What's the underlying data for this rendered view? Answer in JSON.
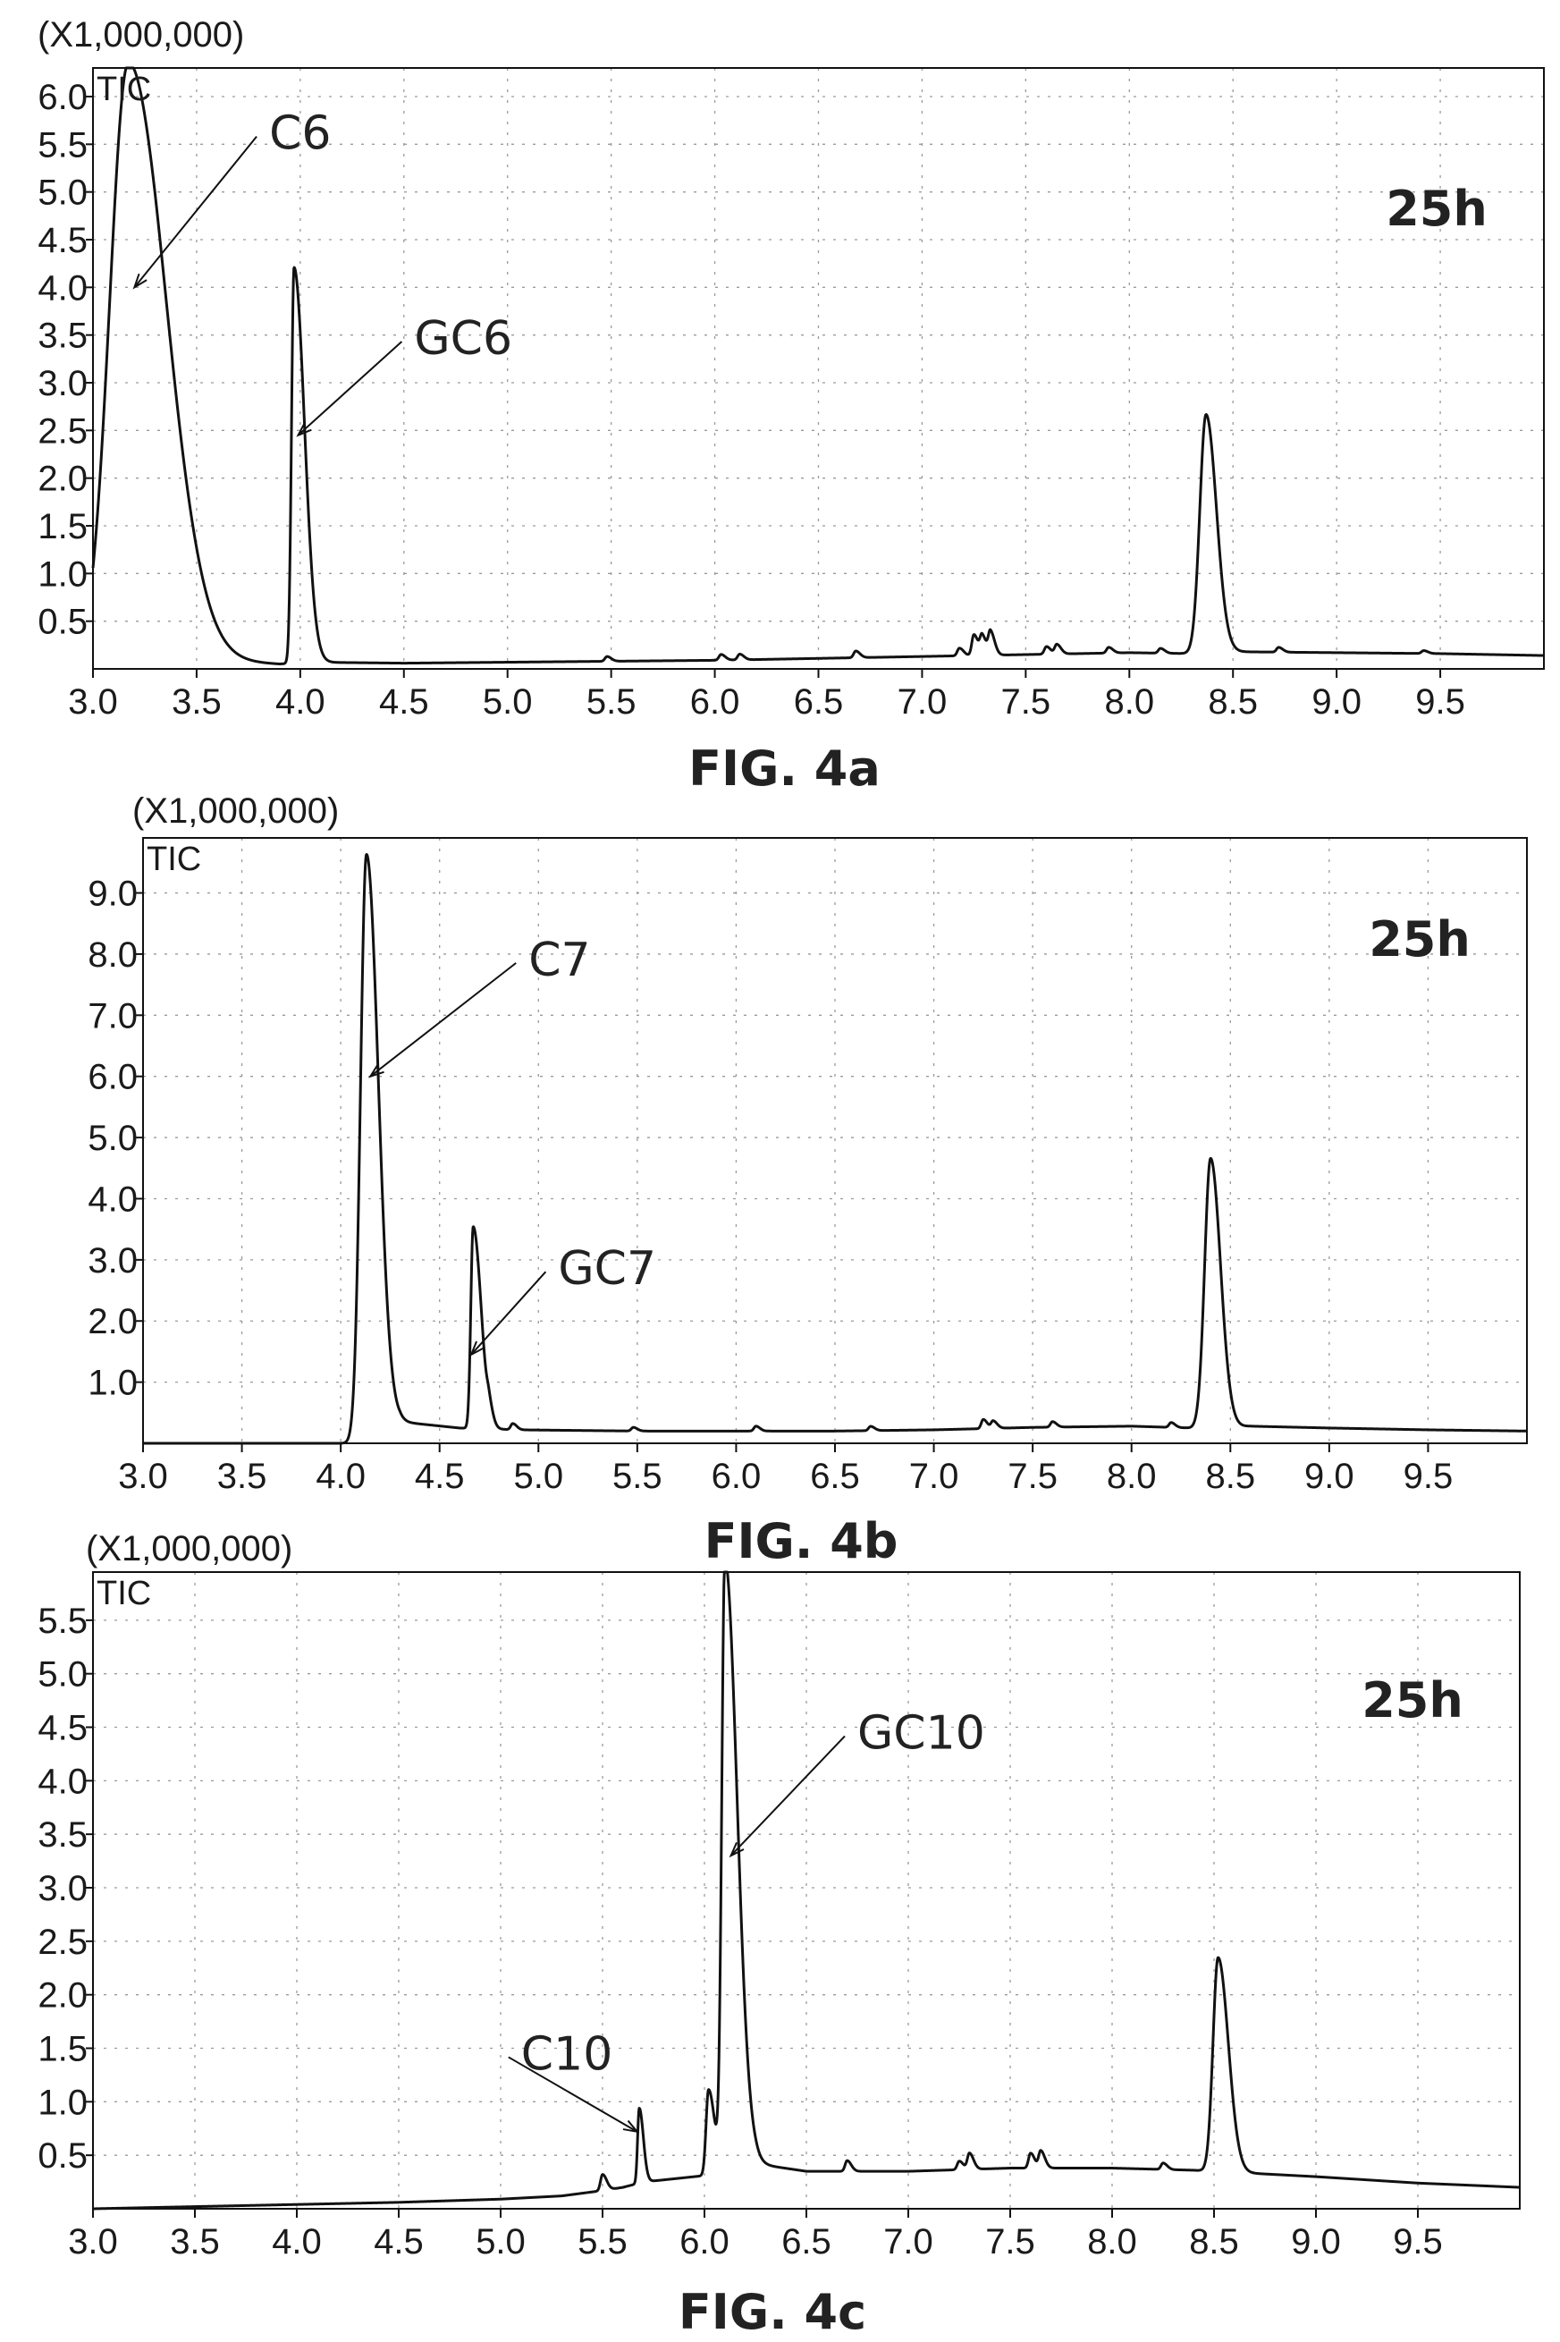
{
  "chart_data": [
    {
      "type": "line",
      "scale_label": "(X1,000,000)",
      "trace_label": "TIC",
      "time_label": "25h",
      "caption": "FIG. 4a",
      "xlim": [
        3.0,
        10.0
      ],
      "ylim": [
        0,
        6.3
      ],
      "xticks": [
        "3.0",
        "3.5",
        "4.0",
        "4.5",
        "5.0",
        "5.5",
        "6.0",
        "6.5",
        "7.0",
        "7.5",
        "8.0",
        "8.5",
        "9.0",
        "9.5"
      ],
      "yticks": [
        "0.5",
        "1.0",
        "1.5",
        "2.0",
        "2.5",
        "3.0",
        "3.5",
        "4.0",
        "4.5",
        "5.0",
        "5.5",
        "6.0"
      ],
      "baseline": [
        [
          3.0,
          0.0
        ],
        [
          3.08,
          0.0
        ],
        [
          3.3,
          0.12
        ],
        [
          3.6,
          0.08
        ],
        [
          3.9,
          0.05
        ],
        [
          4.05,
          0.07
        ],
        [
          4.5,
          0.06
        ],
        [
          5.0,
          0.07
        ],
        [
          5.5,
          0.08
        ],
        [
          6.0,
          0.09
        ],
        [
          6.5,
          0.11
        ],
        [
          7.0,
          0.13
        ],
        [
          7.5,
          0.15
        ],
        [
          8.0,
          0.17
        ],
        [
          8.3,
          0.16
        ],
        [
          8.5,
          0.18
        ],
        [
          9.0,
          0.17
        ],
        [
          9.5,
          0.16
        ],
        [
          10.0,
          0.14
        ]
      ],
      "peaks": [
        {
          "rt": 3.17,
          "height": 6.3,
          "left": 0.09,
          "tail": 0.18
        },
        {
          "rt": 3.97,
          "height": 4.15,
          "left": 0.012,
          "tail": 0.05
        },
        {
          "rt": 8.37,
          "height": 2.5,
          "left": 0.03,
          "tail": 0.05
        },
        {
          "rt": 5.48,
          "height": 0.05,
          "left": 0.01,
          "tail": 0.02
        },
        {
          "rt": 6.03,
          "height": 0.06,
          "left": 0.01,
          "tail": 0.02
        },
        {
          "rt": 6.12,
          "height": 0.06,
          "left": 0.01,
          "tail": 0.02
        },
        {
          "rt": 6.68,
          "height": 0.07,
          "left": 0.01,
          "tail": 0.02
        },
        {
          "rt": 7.18,
          "height": 0.08,
          "left": 0.01,
          "tail": 0.02
        },
        {
          "rt": 7.25,
          "height": 0.22,
          "left": 0.01,
          "tail": 0.02
        },
        {
          "rt": 7.29,
          "height": 0.2,
          "left": 0.01,
          "tail": 0.02
        },
        {
          "rt": 7.33,
          "height": 0.24,
          "left": 0.01,
          "tail": 0.02
        },
        {
          "rt": 7.6,
          "height": 0.08,
          "left": 0.01,
          "tail": 0.02
        },
        {
          "rt": 7.65,
          "height": 0.1,
          "left": 0.01,
          "tail": 0.02
        },
        {
          "rt": 7.9,
          "height": 0.06,
          "left": 0.01,
          "tail": 0.02
        },
        {
          "rt": 8.15,
          "height": 0.05,
          "left": 0.01,
          "tail": 0.02
        },
        {
          "rt": 8.72,
          "height": 0.05,
          "left": 0.01,
          "tail": 0.02
        },
        {
          "rt": 9.42,
          "height": 0.03,
          "left": 0.01,
          "tail": 0.02
        }
      ],
      "annotations": [
        {
          "text": "C6",
          "label_x": 3.85,
          "label_y": 5.45,
          "tip_x": 3.2,
          "tip_y": 4.0
        },
        {
          "text": "GC6",
          "label_x": 4.55,
          "label_y": 3.3,
          "tip_x": 3.99,
          "tip_y": 2.45
        }
      ]
    },
    {
      "type": "line",
      "scale_label": "(X1,000,000)",
      "trace_label": "TIC",
      "time_label": "25h",
      "caption": "FIG. 4b",
      "xlim": [
        3.0,
        10.0
      ],
      "ylim": [
        0,
        9.9
      ],
      "xticks": [
        "3.0",
        "3.5",
        "4.0",
        "4.5",
        "5.0",
        "5.5",
        "6.0",
        "6.5",
        "7.0",
        "7.5",
        "8.0",
        "8.5",
        "9.0",
        "9.5"
      ],
      "yticks": [
        "1.0",
        "2.0",
        "3.0",
        "4.0",
        "5.0",
        "6.0",
        "7.0",
        "8.0",
        "9.0"
      ],
      "baseline": [
        [
          3.0,
          0.0
        ],
        [
          4.08,
          0.0
        ],
        [
          4.3,
          0.35
        ],
        [
          4.6,
          0.25
        ],
        [
          4.9,
          0.22
        ],
        [
          5.5,
          0.2
        ],
        [
          6.0,
          0.2
        ],
        [
          6.5,
          0.2
        ],
        [
          7.0,
          0.22
        ],
        [
          7.5,
          0.26
        ],
        [
          8.0,
          0.28
        ],
        [
          8.3,
          0.25
        ],
        [
          8.6,
          0.28
        ],
        [
          9.0,
          0.25
        ],
        [
          9.5,
          0.22
        ],
        [
          10.0,
          0.2
        ]
      ],
      "peaks": [
        {
          "rt": 4.13,
          "height": 9.55,
          "left": 0.03,
          "tail": 0.06
        },
        {
          "rt": 4.67,
          "height": 3.3,
          "left": 0.012,
          "tail": 0.04
        },
        {
          "rt": 8.4,
          "height": 4.4,
          "left": 0.03,
          "tail": 0.05
        },
        {
          "rt": 4.75,
          "height": 0.2,
          "left": 0.01,
          "tail": 0.02
        },
        {
          "rt": 4.87,
          "height": 0.1,
          "left": 0.01,
          "tail": 0.02
        },
        {
          "rt": 5.48,
          "height": 0.06,
          "left": 0.01,
          "tail": 0.02
        },
        {
          "rt": 6.1,
          "height": 0.08,
          "left": 0.01,
          "tail": 0.02
        },
        {
          "rt": 6.68,
          "height": 0.07,
          "left": 0.01,
          "tail": 0.02
        },
        {
          "rt": 7.25,
          "height": 0.15,
          "left": 0.01,
          "tail": 0.02
        },
        {
          "rt": 7.3,
          "height": 0.12,
          "left": 0.01,
          "tail": 0.02
        },
        {
          "rt": 7.6,
          "height": 0.09,
          "left": 0.01,
          "tail": 0.02
        },
        {
          "rt": 8.2,
          "height": 0.08,
          "left": 0.01,
          "tail": 0.02
        }
      ],
      "annotations": [
        {
          "text": "C7",
          "label_x": 4.95,
          "label_y": 7.65,
          "tip_x": 4.15,
          "tip_y": 6.0
        },
        {
          "text": "GC7",
          "label_x": 5.1,
          "label_y": 2.6,
          "tip_x": 4.66,
          "tip_y": 1.45
        }
      ]
    },
    {
      "type": "line",
      "scale_label": "(X1,000,000)",
      "trace_label": "TIC",
      "time_label": "25h",
      "caption": "FIG. 4c",
      "xlim": [
        3.0,
        10.0
      ],
      "ylim": [
        0,
        5.95
      ],
      "xticks": [
        "3.0",
        "3.5",
        "4.0",
        "4.5",
        "5.0",
        "5.5",
        "6.0",
        "6.5",
        "7.0",
        "7.5",
        "8.0",
        "8.5",
        "9.0",
        "9.5"
      ],
      "yticks": [
        "0.5",
        "1.0",
        "1.5",
        "2.0",
        "2.5",
        "3.0",
        "3.5",
        "4.0",
        "4.5",
        "5.0",
        "5.5"
      ],
      "baseline": [
        [
          3.0,
          0.0
        ],
        [
          3.5,
          0.02
        ],
        [
          4.0,
          0.04
        ],
        [
          4.5,
          0.06
        ],
        [
          5.0,
          0.09
        ],
        [
          5.3,
          0.12
        ],
        [
          5.5,
          0.17
        ],
        [
          5.6,
          0.2
        ],
        [
          5.7,
          0.25
        ],
        [
          5.95,
          0.3
        ],
        [
          6.05,
          0.32
        ],
        [
          6.25,
          0.42
        ],
        [
          6.5,
          0.35
        ],
        [
          7.0,
          0.35
        ],
        [
          7.5,
          0.38
        ],
        [
          8.0,
          0.38
        ],
        [
          8.4,
          0.36
        ],
        [
          8.6,
          0.34
        ],
        [
          9.0,
          0.3
        ],
        [
          9.5,
          0.24
        ],
        [
          10.0,
          0.2
        ]
      ],
      "peaks": [
        {
          "rt": 5.68,
          "height": 0.7,
          "left": 0.008,
          "tail": 0.02
        },
        {
          "rt": 6.02,
          "height": 0.8,
          "left": 0.012,
          "tail": 0.03
        },
        {
          "rt": 6.1,
          "height": 5.72,
          "left": 0.015,
          "tail": 0.06
        },
        {
          "rt": 8.52,
          "height": 2.0,
          "left": 0.025,
          "tail": 0.05
        },
        {
          "rt": 5.5,
          "height": 0.15,
          "left": 0.01,
          "tail": 0.02
        },
        {
          "rt": 6.7,
          "height": 0.1,
          "left": 0.01,
          "tail": 0.02
        },
        {
          "rt": 7.25,
          "height": 0.08,
          "left": 0.01,
          "tail": 0.02
        },
        {
          "rt": 7.3,
          "height": 0.15,
          "left": 0.01,
          "tail": 0.02
        },
        {
          "rt": 7.6,
          "height": 0.14,
          "left": 0.01,
          "tail": 0.02
        },
        {
          "rt": 7.65,
          "height": 0.16,
          "left": 0.01,
          "tail": 0.02
        },
        {
          "rt": 8.25,
          "height": 0.06,
          "left": 0.01,
          "tail": 0.02
        }
      ],
      "annotations": [
        {
          "text": "C10",
          "label_x": 5.1,
          "label_y": 1.3,
          "tip_x": 5.67,
          "tip_y": 0.72
        },
        {
          "text": "GC10",
          "label_x": 6.75,
          "label_y": 4.3,
          "tip_x": 6.13,
          "tip_y": 3.3
        }
      ]
    }
  ]
}
